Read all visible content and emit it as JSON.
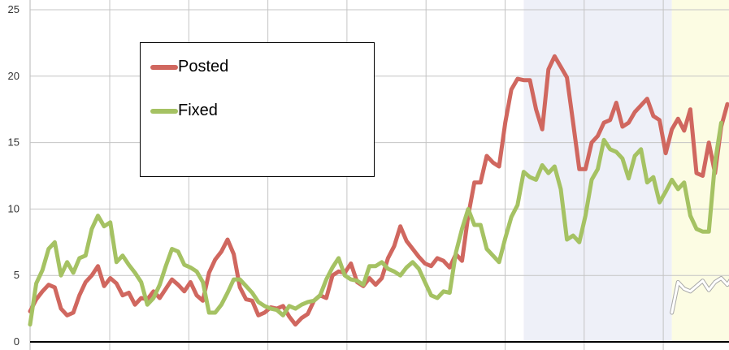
{
  "chart_data": {
    "type": "line",
    "title": "",
    "xlabel": "",
    "ylabel": "",
    "ylim": [
      0,
      25
    ],
    "yticks": [
      "0",
      "5",
      "10",
      "15",
      "20",
      "25"
    ],
    "grid": true,
    "legend_position": "top-left",
    "highlight_regions": [
      {
        "name": "blue-band",
        "from_index": 80,
        "to_index": 104,
        "color": "#eef0f8"
      },
      {
        "name": "yellow-band",
        "from_index": 104,
        "to_index": 122,
        "color": "#fcfce3"
      }
    ],
    "series": [
      {
        "name": "Posted",
        "color": "#d0675f",
        "values": [
          2.3,
          3.2,
          3.8,
          4.3,
          4.1,
          2.5,
          2.0,
          2.2,
          3.5,
          4.5,
          5.0,
          5.7,
          4.2,
          4.8,
          4.4,
          3.5,
          3.7,
          2.8,
          3.3,
          3.2,
          3.8,
          3.3,
          4.0,
          4.7,
          4.3,
          3.8,
          4.5,
          3.5,
          3.1,
          5.2,
          6.2,
          6.8,
          7.7,
          6.6,
          4.1,
          3.2,
          3.1,
          2.0,
          2.2,
          2.6,
          2.5,
          2.7,
          1.9,
          1.3,
          1.8,
          2.1,
          3.1,
          3.5,
          3.3,
          5.0,
          5.3,
          5.2,
          5.9,
          4.5,
          4.2,
          4.8,
          4.3,
          4.8,
          6.3,
          7.2,
          8.7,
          7.6,
          7.0,
          6.4,
          5.9,
          5.7,
          6.3,
          6.1,
          5.6,
          6.6,
          6.1,
          9.5,
          12.0,
          12.0,
          14.0,
          13.5,
          13.2,
          16.5,
          19.0,
          19.8,
          19.7,
          19.7,
          17.5,
          16.0,
          20.5,
          21.5,
          20.7,
          19.9,
          16.5,
          13.0,
          13.0,
          15.0,
          15.5,
          16.5,
          16.7,
          18.0,
          16.2,
          16.5,
          17.3,
          17.8,
          18.3,
          17.0,
          16.7,
          14.2,
          16.0,
          16.8,
          15.9,
          17.5,
          12.7,
          12.5,
          15.0,
          12.7,
          16.2,
          17.9
        ],
        "show_in_legend": true
      },
      {
        "name": "Fixed",
        "color": "#a5c263",
        "values": [
          1.3,
          4.4,
          5.4,
          7.0,
          7.5,
          5.0,
          6.0,
          5.2,
          6.3,
          6.5,
          8.5,
          9.5,
          8.7,
          9.0,
          6.0,
          6.5,
          5.8,
          5.2,
          4.5,
          2.8,
          3.3,
          4.3,
          5.7,
          7.0,
          6.8,
          5.8,
          5.6,
          5.3,
          4.5,
          2.2,
          2.2,
          2.8,
          3.7,
          4.7,
          4.7,
          4.2,
          3.7,
          3.0,
          2.7,
          2.5,
          2.4,
          2.0,
          2.7,
          2.5,
          2.8,
          3.0,
          3.1,
          3.5,
          4.7,
          5.6,
          6.3,
          5.0,
          4.7,
          4.6,
          4.3,
          5.7,
          5.7,
          6.0,
          5.5,
          5.3,
          5.0,
          5.6,
          6.0,
          5.5,
          4.5,
          3.5,
          3.3,
          3.8,
          3.7,
          6.7,
          8.5,
          10.0,
          8.8,
          8.8,
          7.0,
          6.5,
          6.0,
          7.8,
          9.4,
          10.3,
          12.8,
          12.4,
          12.2,
          13.3,
          12.7,
          13.2,
          11.5,
          7.7,
          8.0,
          7.5,
          9.5,
          12.2,
          13.0,
          15.2,
          14.5,
          14.3,
          13.8,
          12.3,
          14.0,
          14.5,
          12.0,
          12.4,
          10.5,
          11.3,
          12.2,
          11.5,
          12.0,
          9.5,
          8.5,
          8.3,
          8.3,
          13.5,
          16.5
        ],
        "show_in_legend": true
      },
      {
        "name": "",
        "color": "#ffffff",
        "start_index": 104,
        "values": [
          2.2,
          4.5,
          4.0,
          3.8,
          4.2,
          4.6,
          3.9,
          4.5,
          4.8,
          4.3,
          5.0,
          4.2,
          4.0,
          6.8,
          5.5,
          4.5,
          2.0
        ],
        "show_in_legend": false
      }
    ]
  }
}
